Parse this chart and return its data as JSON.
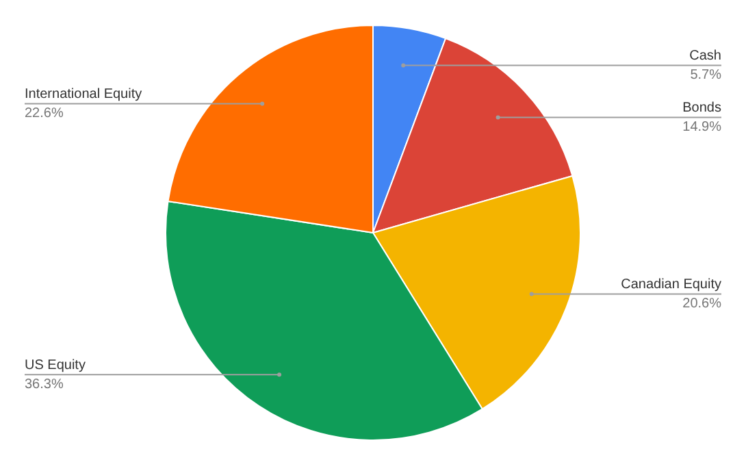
{
  "chart_data": {
    "type": "pie",
    "categories": [
      "Cash",
      "Bonds",
      "Canadian Equity",
      "US Equity",
      "International Equity"
    ],
    "values": [
      5.7,
      14.9,
      20.6,
      36.3,
      22.6
    ],
    "colors": [
      "#4285f4",
      "#db4437",
      "#f4b400",
      "#0f9d58",
      "#ff6d00"
    ],
    "value_labels": [
      "5.7%",
      "14.9%",
      "20.6%",
      "36.3%",
      "22.6%"
    ],
    "legend": false
  }
}
